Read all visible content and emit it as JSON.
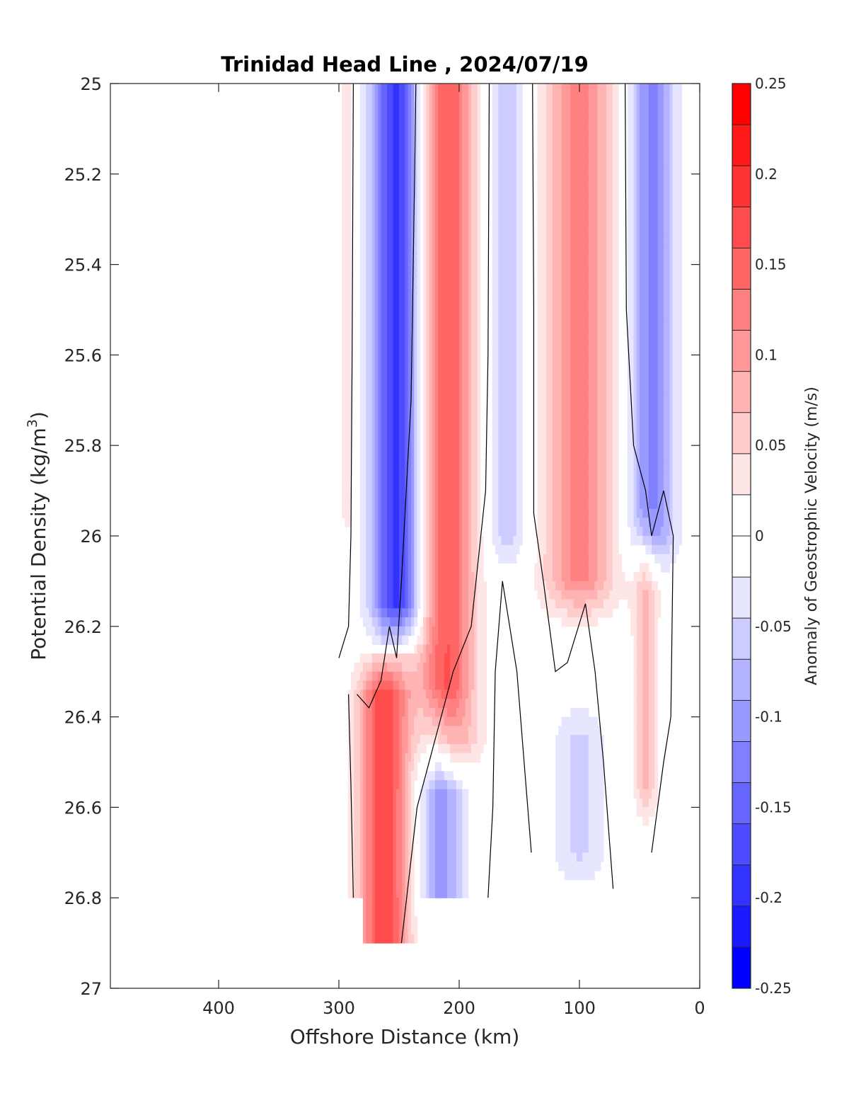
{
  "chart_data": {
    "type": "heatmap",
    "title": "Trinidad Head Line , 2024/07/19",
    "xlabel": "Offshore Distance (km)",
    "ylabel_main": "Potential Density (kg/m",
    "ylabel_sup": "3",
    "ylabel_end": ")",
    "colorbar_label": "Anomaly of Geostrophic Velocity (m/s)",
    "x_reversed": true,
    "xlim": [
      490,
      0
    ],
    "ylim": [
      25,
      27
    ],
    "y_reversed": true,
    "x_ticks": [
      400,
      300,
      200,
      100,
      0
    ],
    "y_ticks": [
      25,
      25.2,
      25.4,
      25.6,
      25.8,
      26,
      26.2,
      26.4,
      26.6,
      26.8,
      27
    ],
    "x_tick_labels": [
      "400",
      "300",
      "200",
      "100",
      "0"
    ],
    "y_tick_labels": [
      "25",
      "25.2",
      "25.4",
      "25.6",
      "25.8",
      "26",
      "26.2",
      "26.4",
      "26.6",
      "26.8",
      "27"
    ],
    "colorbar": {
      "min": -0.25,
      "max": 0.25,
      "step": 0.025,
      "tick_values": [
        0.25,
        0.2,
        0.15,
        0.1,
        0.05,
        0,
        -0.05,
        -0.1,
        -0.15,
        -0.2,
        -0.25
      ],
      "tick_labels": [
        "0.25",
        "0.2",
        "0.15",
        "0.1",
        "0.05",
        "0",
        "-0.05",
        "-0.1",
        "-0.15",
        "-0.2",
        "-0.25"
      ],
      "colors_top_to_bottom": [
        "#ff0000",
        "#ff1a1a",
        "#ff3333",
        "#ff4d4d",
        "#ff6666",
        "#ff8080",
        "#ff9999",
        "#ffb3b3",
        "#ffcccc",
        "#ffe6e6",
        "#ffffff",
        "#ffffff",
        "#e6e6ff",
        "#ccccff",
        "#b3b3ff",
        "#9999ff",
        "#8080ff",
        "#6666ff",
        "#4d4dff",
        "#3333ff",
        "#1a1aff",
        "#0000ff"
      ]
    },
    "stations_x_km": [
      300,
      280,
      260,
      245,
      230,
      210,
      190,
      165,
      150,
      130,
      110,
      90,
      70,
      55,
      40,
      30,
      20
    ],
    "density_levels": [
      25.0,
      25.1,
      25.2,
      25.3,
      25.4,
      25.5,
      25.6,
      25.7,
      25.8,
      25.9,
      26.0,
      26.1,
      26.2,
      26.3,
      26.4,
      26.5,
      26.6,
      26.7,
      26.8,
      26.9
    ],
    "velocity_anomaly_bands": [
      {
        "name": "offshore positive edge",
        "x_center": 293,
        "width": 12,
        "y_top": 25.0,
        "y_bottom": 25.95,
        "peak": 0.04
      },
      {
        "name": "offshore negative core",
        "x_center": 252,
        "width": 50,
        "y_top": 25.0,
        "y_bottom": 26.15,
        "peak": -0.19
      },
      {
        "name": "main positive jet",
        "x_center": 210,
        "width": 55,
        "y_top": 25.0,
        "y_bottom": 26.45,
        "peak": 0.16
      },
      {
        "name": "mid negative band",
        "x_center": 160,
        "width": 40,
        "y_top": 25.0,
        "y_bottom": 26.0,
        "peak": -0.06
      },
      {
        "name": "nearshore positive core",
        "x_center": 100,
        "width": 70,
        "y_top": 25.0,
        "y_bottom": 26.1,
        "peak": 0.12
      },
      {
        "name": "coastal negative band",
        "x_center": 40,
        "width": 45,
        "y_top": 25.0,
        "y_bottom": 26.0,
        "peak": -0.12
      },
      {
        "name": "deep positive core",
        "x_center": 262,
        "width": 50,
        "y_top": 26.35,
        "y_bottom": 26.9,
        "peak": 0.18
      },
      {
        "name": "deep negative core",
        "x_center": 215,
        "width": 45,
        "y_top": 26.45,
        "y_bottom": 26.8,
        "peak": -0.1
      },
      {
        "name": "deep mid negative",
        "x_center": 100,
        "width": 55,
        "y_top": 26.45,
        "y_bottom": 26.7,
        "peak": -0.05
      },
      {
        "name": "deep coastal positive",
        "x_center": 45,
        "width": 25,
        "y_top": 26.05,
        "y_bottom": 26.55,
        "peak": 0.07
      }
    ]
  }
}
